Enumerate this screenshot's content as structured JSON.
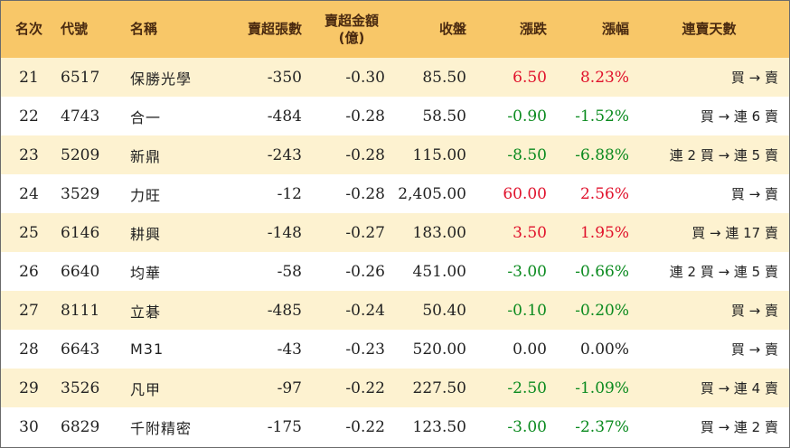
{
  "table": {
    "headers": {
      "rank": "名次",
      "code": "代號",
      "name": "名稱",
      "net_sell_lots": "賣超張數",
      "net_sell_amount_line1": "賣超金額",
      "net_sell_amount_line2": "(億)",
      "close": "收盤",
      "change": "漲跌",
      "change_pct": "漲幅",
      "streak": "連賣天數"
    },
    "rows": [
      {
        "rank": "21",
        "code": "6517",
        "name": "保勝光學",
        "lots": "-350",
        "amount": "-0.30",
        "close": "85.50",
        "change": "6.50",
        "pct": "8.23%",
        "direction": "up",
        "streak": "買 → 賣"
      },
      {
        "rank": "22",
        "code": "4743",
        "name": "合一",
        "lots": "-484",
        "amount": "-0.28",
        "close": "58.50",
        "change": "-0.90",
        "pct": "-1.52%",
        "direction": "down",
        "streak": "買 → 連 6 賣"
      },
      {
        "rank": "23",
        "code": "5209",
        "name": "新鼎",
        "lots": "-243",
        "amount": "-0.28",
        "close": "115.00",
        "change": "-8.50",
        "pct": "-6.88%",
        "direction": "down",
        "streak": "連 2 買 → 連 5 賣"
      },
      {
        "rank": "24",
        "code": "3529",
        "name": "力旺",
        "lots": "-12",
        "amount": "-0.28",
        "close": "2,405.00",
        "change": "60.00",
        "pct": "2.56%",
        "direction": "up",
        "streak": "買 → 賣"
      },
      {
        "rank": "25",
        "code": "6146",
        "name": "耕興",
        "lots": "-148",
        "amount": "-0.27",
        "close": "183.00",
        "change": "3.50",
        "pct": "1.95%",
        "direction": "up",
        "streak": "買 → 連 17 賣"
      },
      {
        "rank": "26",
        "code": "6640",
        "name": "均華",
        "lots": "-58",
        "amount": "-0.26",
        "close": "451.00",
        "change": "-3.00",
        "pct": "-0.66%",
        "direction": "down",
        "streak": "連 2 買 → 連 5 賣"
      },
      {
        "rank": "27",
        "code": "8111",
        "name": "立碁",
        "lots": "-485",
        "amount": "-0.24",
        "close": "50.40",
        "change": "-0.10",
        "pct": "-0.20%",
        "direction": "down",
        "streak": "買 → 賣"
      },
      {
        "rank": "28",
        "code": "6643",
        "name": "M31",
        "lots": "-43",
        "amount": "-0.23",
        "close": "520.00",
        "change": "0.00",
        "pct": "0.00%",
        "direction": "flat",
        "streak": "買 → 賣"
      },
      {
        "rank": "29",
        "code": "3526",
        "name": "凡甲",
        "lots": "-97",
        "amount": "-0.22",
        "close": "227.50",
        "change": "-2.50",
        "pct": "-1.09%",
        "direction": "down",
        "streak": "買 → 連 4 賣"
      },
      {
        "rank": "30",
        "code": "6829",
        "name": "千附精密",
        "lots": "-175",
        "amount": "-0.22",
        "close": "123.50",
        "change": "-3.00",
        "pct": "-2.37%",
        "direction": "down",
        "streak": "買 → 連 2 賣"
      }
    ]
  },
  "colors": {
    "header_bg": "#f8c768",
    "odd_row_bg": "#fdf2d0",
    "even_row_bg": "#ffffff",
    "up": "#e0112b",
    "down": "#0a8a1e",
    "flat": "#222222"
  }
}
